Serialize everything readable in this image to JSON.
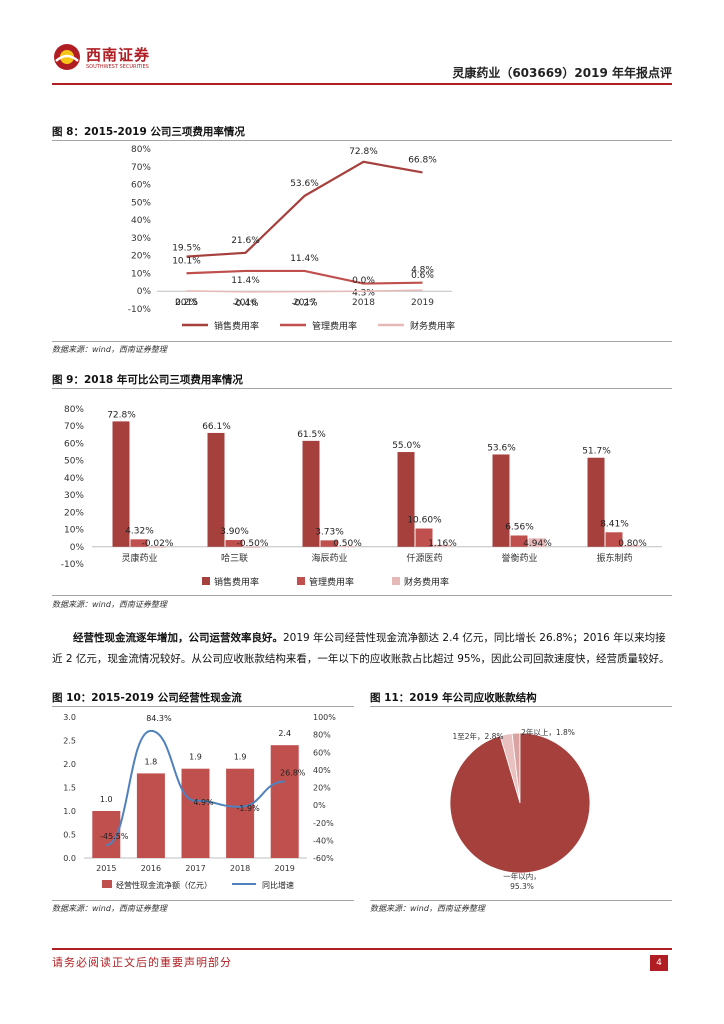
{
  "header": {
    "logo_name": "西南证券",
    "logo_en": "SOUTHWEST SECURITIES",
    "report_title": "灵康药业（603669）2019 年年报点评"
  },
  "figures": {
    "fig8": {
      "title": "图 8：2015-2019 公司三项费用率情况",
      "source": "数据来源：wind，西南证券整理"
    },
    "fig9": {
      "title": "图 9：2018 年可比公司三项费用率情况",
      "source": "数据来源：wind，西南证券整理"
    },
    "fig10": {
      "title": "图 10：2015-2019 公司经营性现金流",
      "source": "数据来源：wind，西南证券整理"
    },
    "fig11": {
      "title": "图 11：2019 年公司应收账款结构",
      "source": "数据来源：wind，西南证券整理"
    }
  },
  "paragraph": {
    "bold": "经营性现金流逐年增加，公司运营效率良好。",
    "text": "2019 年公司经营性现金流净额达 2.4 亿元，同比增长 26.8%；2016 年以来均接近 2 亿元，现金流情况较好。从公司应收账款结构来看，一年以下的应收账款占比超过 95%，因此公司回款速度快，经营质量较好。"
  },
  "footer": {
    "note": "请务必阅读正文后的重要声明部分",
    "page": "4"
  },
  "colors": {
    "accent": "#b01e23",
    "bar": "#c0504d",
    "bar_dark": "#a5403d",
    "light": "#e6b9b8",
    "blue": "#4f81bd"
  },
  "chart_data": [
    {
      "type": "line",
      "x": [
        "2015",
        "2016",
        "2017",
        "2018",
        "2019"
      ],
      "ylim": [
        -10,
        80
      ],
      "yticks": [
        "80%",
        "70%",
        "60%",
        "50%",
        "40%",
        "30%",
        "20%",
        "10%",
        "0%",
        "-10%"
      ],
      "series": [
        {
          "name": "销售费用率",
          "values": [
            19.5,
            21.6,
            53.6,
            72.8,
            66.8
          ],
          "labels": [
            "19.5%",
            "21.6%",
            "53.6%",
            "72.8%",
            "66.8%"
          ]
        },
        {
          "name": "管理费用率",
          "values": [
            10.1,
            11.4,
            11.4,
            4.3,
            4.8
          ],
          "labels": [
            "10.1%",
            "11.4%",
            "11.4%",
            "4.3%",
            "4.8%"
          ]
        },
        {
          "name": "财务费用率",
          "values": [
            0.2,
            -0.4,
            -0.2,
            0.0,
            0.6
          ],
          "labels": [
            "0.2%",
            "-0.4%",
            "-0.2%",
            "0.0%",
            "0.6%"
          ]
        }
      ]
    },
    {
      "type": "bar",
      "categories": [
        "灵康药业",
        "哈三联",
        "海辰药业",
        "仟源医药",
        "誉衡药业",
        "振东制药"
      ],
      "ylim": [
        -10,
        80
      ],
      "yticks": [
        "80%",
        "70%",
        "60%",
        "50%",
        "40%",
        "30%",
        "20%",
        "10%",
        "0%",
        "-10%"
      ],
      "series": [
        {
          "name": "销售费用率",
          "values": [
            72.8,
            66.1,
            61.5,
            55.0,
            53.6,
            51.7
          ],
          "labels": [
            "72.8%",
            "66.1%",
            "61.5%",
            "55.0%",
            "53.6%",
            "51.7%"
          ]
        },
        {
          "name": "管理费用率",
          "values": [
            4.32,
            3.9,
            3.73,
            10.6,
            6.56,
            8.41
          ],
          "labels": [
            "4.32%",
            "3.90%",
            "3.73%",
            "10.60%",
            "6.56%",
            "8.41%"
          ]
        },
        {
          "name": "财务费用率",
          "values": [
            -0.02,
            -0.5,
            0.5,
            1.16,
            4.94,
            0.8
          ],
          "labels": [
            "-0.02%",
            "-0.50%",
            "0.50%",
            "1.16%",
            "4.94%",
            "0.80%"
          ]
        }
      ]
    },
    {
      "type": "bar",
      "categories": [
        "2015",
        "2016",
        "2017",
        "2018",
        "2019"
      ],
      "ylim": [
        0,
        3.0
      ],
      "yticks": [
        "3.0",
        "2.5",
        "2.0",
        "1.5",
        "1.0",
        "0.5",
        "0.0"
      ],
      "y2lim": [
        -60,
        100
      ],
      "y2ticks": [
        "100%",
        "80%",
        "60%",
        "40%",
        "20%",
        "0%",
        "-20%",
        "-40%",
        "-60%"
      ],
      "series": [
        {
          "name": "经营性现金流净额（亿元）",
          "values": [
            1.0,
            1.8,
            1.9,
            1.9,
            2.4
          ],
          "labels": [
            "1.0",
            "1.8",
            "1.9",
            "1.9",
            "2.4"
          ]
        },
        {
          "name": "同比增速",
          "values": [
            -45.5,
            84.3,
            4.9,
            -1.9,
            26.8
          ],
          "labels": [
            "-45.5%",
            "84.3%",
            "4.9%",
            "-1.9%",
            "26.8%"
          ]
        }
      ]
    },
    {
      "type": "pie",
      "slices": [
        {
          "label": "一年以内，",
          "value_label": "95.3%",
          "value": 95.3
        },
        {
          "label": "1至2年，2.8%",
          "value": 2.8
        },
        {
          "label": "2年以上，1.8%",
          "value": 1.8
        }
      ]
    }
  ]
}
